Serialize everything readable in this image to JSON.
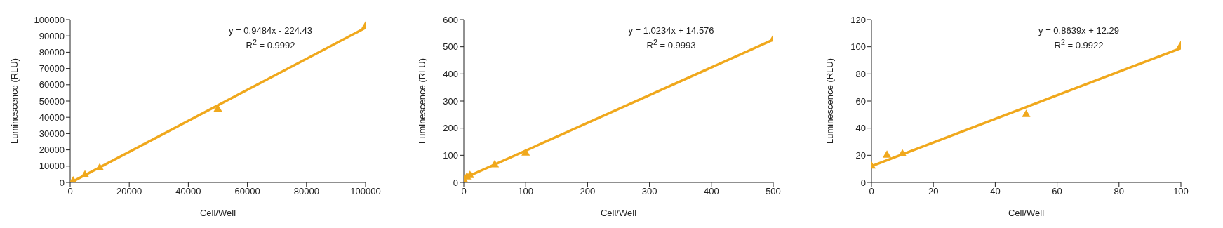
{
  "chart_data": [
    {
      "type": "scatter",
      "xlabel": "Cell/Well",
      "ylabel": "Luminescence (RLU)",
      "annotations": [
        "y = 0.9484x - 224.43",
        "R$^{2}$ = 0.9992"
      ],
      "xlim": [
        0,
        100000
      ],
      "xticks": [
        0,
        20000,
        40000,
        60000,
        80000,
        100000
      ],
      "ylim": [
        0,
        100000
      ],
      "yticks": [
        0,
        10000,
        20000,
        30000,
        40000,
        50000,
        60000,
        70000,
        80000,
        90000,
        100000
      ],
      "grid": false,
      "series": [
        {
          "marker": "triangle",
          "color": "#f0a81c",
          "x": [
            1000,
            5000,
            10000,
            50000,
            100000
          ],
          "values": [
            900,
            4500,
            8800,
            45000,
            96000
          ]
        },
        {
          "type": "line",
          "marker": "none",
          "color": "#f0a81c",
          "x": [
            300,
            100000
          ],
          "values": [
            0,
            95000
          ]
        }
      ]
    },
    {
      "type": "scatter",
      "xlabel": "Cell/Well",
      "ylabel": "Luminescence (RLU)",
      "annotations": [
        "y = 1.0234x + 14.576",
        "R$^{2}$ = 0.9993"
      ],
      "xlim": [
        0,
        500
      ],
      "xticks": [
        0,
        100,
        200,
        300,
        400,
        500
      ],
      "ylim": [
        0,
        600
      ],
      "yticks": [
        0,
        100,
        200,
        300,
        400,
        500,
        600
      ],
      "grid": false,
      "series": [
        {
          "marker": "triangle",
          "color": "#f0a81c",
          "x": [
            0,
            5,
            10,
            50,
            100,
            500
          ],
          "values": [
            10,
            20,
            25,
            65,
            108,
            528
          ]
        },
        {
          "type": "line",
          "marker": "none",
          "color": "#f0a81c",
          "x": [
            0,
            500
          ],
          "values": [
            15,
            526
          ]
        }
      ]
    },
    {
      "type": "scatter",
      "xlabel": "Cell/Well",
      "ylabel": "Luminescence (RLU)",
      "annotations": [
        "y = 0.8639x + 12.29",
        "R$^{2}$ = 0.9922"
      ],
      "xlim": [
        0,
        100
      ],
      "xticks": [
        0,
        20,
        40,
        60,
        80,
        100
      ],
      "ylim": [
        0,
        120
      ],
      "yticks": [
        0,
        20,
        40,
        60,
        80,
        100,
        120
      ],
      "grid": false,
      "series": [
        {
          "marker": "triangle",
          "color": "#f0a81c",
          "x": [
            0,
            5,
            10,
            50,
            100
          ],
          "values": [
            12,
            20,
            21,
            50,
            101
          ]
        },
        {
          "type": "line",
          "marker": "none",
          "color": "#f0a81c",
          "x": [
            0,
            100
          ],
          "values": [
            12,
            99
          ]
        }
      ]
    }
  ]
}
